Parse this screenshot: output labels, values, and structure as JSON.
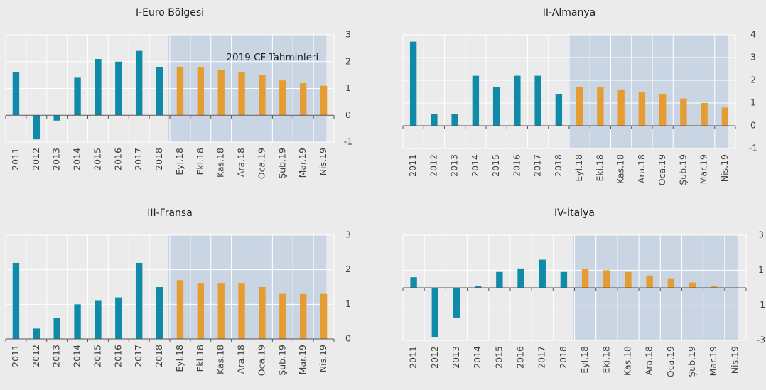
{
  "chart_data": [
    {
      "type": "bar",
      "title": "I-Euro Bölgesi",
      "annotation": "2019 CF Tahminleri",
      "categories": [
        "2011",
        "2012",
        "2013",
        "2014",
        "2015",
        "2016",
        "2017",
        "2018",
        "Eyl.18",
        "Eki.18",
        "Kas.18",
        "Ara.18",
        "Oca.19",
        "Şub.19",
        "Mar.19",
        "Nis.19"
      ],
      "values": [
        1.6,
        -0.9,
        -0.2,
        1.4,
        2.1,
        2.0,
        2.4,
        1.8,
        1.8,
        1.8,
        1.7,
        1.6,
        1.5,
        1.3,
        1.2,
        1.1
      ],
      "color": "#0f8aa8",
      "forecast_color": "#e59c33",
      "forecast_start": "Eyl.18",
      "shade_color": "#cad5e4",
      "ylim": [
        -1,
        3
      ],
      "yticks": [
        -1,
        0,
        1,
        2,
        3
      ],
      "grid": true
    },
    {
      "type": "bar",
      "title": "II-Almanya",
      "categories": [
        "2011",
        "2012",
        "2013",
        "2014",
        "2015",
        "2016",
        "2017",
        "2018",
        "Eyl.18",
        "Eki.18",
        "Kas.18",
        "Ara.18",
        "Oca.19",
        "Şub.19",
        "Mar.19",
        "Nis.19"
      ],
      "values": [
        3.7,
        0.5,
        0.5,
        2.2,
        1.7,
        2.2,
        2.2,
        1.4,
        1.7,
        1.7,
        1.6,
        1.5,
        1.4,
        1.2,
        1.0,
        0.8
      ],
      "color": "#0f8aa8",
      "forecast_color": "#e59c33",
      "forecast_start": "Eyl.18",
      "shade_color": "#cad5e4",
      "ylim": [
        -1,
        4
      ],
      "yticks": [
        -1,
        0,
        1,
        2,
        3,
        4
      ],
      "grid": true
    },
    {
      "type": "bar",
      "title": "III-Fransa",
      "categories": [
        "2011",
        "2012",
        "2013",
        "2014",
        "2015",
        "2016",
        "2017",
        "2018",
        "Eyl.18",
        "Eki.18",
        "Kas.18",
        "Ara.18",
        "Oca.19",
        "Şub.19",
        "Mar.19",
        "Nis.19"
      ],
      "values": [
        2.2,
        0.3,
        0.6,
        1.0,
        1.1,
        1.2,
        2.2,
        1.5,
        1.7,
        1.6,
        1.6,
        1.6,
        1.5,
        1.3,
        1.3,
        1.3
      ],
      "color": "#0f8aa8",
      "forecast_color": "#e59c33",
      "forecast_start": "Eyl.18",
      "shade_color": "#cad5e4",
      "ylim": [
        0,
        3
      ],
      "yticks": [
        0,
        1,
        2,
        3
      ],
      "grid": true
    },
    {
      "type": "bar",
      "title": "IV-İtalya",
      "categories": [
        "2011",
        "2012",
        "2013",
        "2014",
        "2015",
        "2016",
        "2017",
        "2018",
        "Eyl.18",
        "Eki.18",
        "Kas.18",
        "Ara.18",
        "Oca.19",
        "Şub.19",
        "Mar.19",
        "Nis.19"
      ],
      "values": [
        0.6,
        -2.8,
        -1.7,
        0.1,
        0.9,
        1.1,
        1.6,
        0.9,
        1.1,
        1.0,
        0.9,
        0.7,
        0.5,
        0.3,
        0.1,
        0
      ],
      "color": "#0f8aa8",
      "forecast_color": "#e59c33",
      "forecast_start": "Eyl.18",
      "shade_color": "#cad5e4",
      "ylim": [
        -3,
        3
      ],
      "yticks": [
        -3,
        -1,
        1,
        3
      ],
      "grid": true
    }
  ]
}
